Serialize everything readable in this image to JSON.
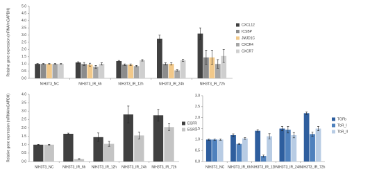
{
  "chart_data": [
    {
      "type": "bar",
      "y_label": "Relative gene expression (mRNA/mGAPDH)",
      "categories": [
        "NIH3T3_NC",
        "NIH3T3_IR_6h",
        "NIH3T3_IR_12h",
        "NIH3T3_IR_24h",
        "NIH3T3_IR_72h"
      ],
      "series": [
        {
          "name": "CXCL12",
          "color": "#404040",
          "values": [
            1.0,
            1.1,
            1.2,
            2.75,
            3.1
          ],
          "errors": [
            0.03,
            0.05,
            0.04,
            0.25,
            0.4
          ]
        },
        {
          "name": "ICSBP",
          "color": "#8c8c8c",
          "values": [
            1.0,
            1.0,
            0.95,
            1.0,
            1.45
          ],
          "errors": [
            0.03,
            0.1,
            0.05,
            0.08,
            0.5
          ]
        },
        {
          "name": "JMJD1C",
          "color": "#f2c98a",
          "values": [
            1.0,
            0.95,
            0.95,
            1.0,
            1.45
          ],
          "errors": [
            0.03,
            0.1,
            0.05,
            0.08,
            0.5
          ]
        },
        {
          "name": "CXCR4",
          "color": "#a6a6a6",
          "values": [
            1.0,
            0.8,
            0.85,
            0.55,
            1.0
          ],
          "errors": [
            0.03,
            0.1,
            0.05,
            0.05,
            0.3
          ]
        },
        {
          "name": "CXCR7",
          "color": "#cfcfcf",
          "values": [
            1.0,
            1.0,
            1.25,
            1.25,
            1.55
          ],
          "errors": [
            0.03,
            0.08,
            0.05,
            0.08,
            0.45
          ]
        }
      ],
      "ylim": [
        0,
        5
      ],
      "yticks": [
        {
          "value": 0,
          "label": "0.0"
        },
        {
          "value": 0.5,
          "label": "0.5"
        },
        {
          "value": 1,
          "label": "1.0"
        },
        {
          "value": 1.5,
          "label": "1.5"
        },
        {
          "value": 2,
          "label": "2.0"
        },
        {
          "value": 2.5,
          "label": "2.5"
        },
        {
          "value": 3,
          "label": "3.0"
        },
        {
          "value": 3.5,
          "label": "3.5"
        },
        {
          "value": 4,
          "label": "4.0"
        },
        {
          "value": 4.5,
          "label": "4.5"
        },
        {
          "value": 5,
          "label": "5.0"
        }
      ],
      "grid": false,
      "legend": "right"
    },
    {
      "type": "bar",
      "y_label": "Relative gene expression (mRNA/mGAPDH)",
      "categories": [
        "NIH3T3_NC",
        "NIH3T3_IR_6h",
        "NIH3T3_IR_12h",
        "NIH3T3_IR_24h",
        "NIH3T3_IR_72h"
      ],
      "series": [
        {
          "name": "EGFR",
          "color": "#404040",
          "values": [
            1.0,
            1.65,
            1.45,
            2.8,
            2.75
          ],
          "errors": [
            0.02,
            0.04,
            0.25,
            0.5,
            0.35
          ]
        },
        {
          "name": "EGR1",
          "color": "#c4c4c4",
          "values": [
            1.0,
            0.15,
            1.05,
            1.55,
            2.05
          ],
          "errors": [
            0.02,
            0.02,
            0.15,
            0.2,
            0.2
          ]
        }
      ],
      "ylim": [
        0,
        4
      ],
      "yticks": [
        {
          "value": 0,
          "label": "0.0"
        },
        {
          "value": 0.5,
          "label": "0.5"
        },
        {
          "value": 1,
          "label": "1.0"
        },
        {
          "value": 1.5,
          "label": "1.5"
        },
        {
          "value": 2,
          "label": "2.0"
        },
        {
          "value": 2.5,
          "label": "2.5"
        },
        {
          "value": 3,
          "label": "3.0"
        },
        {
          "value": 3.5,
          "label": "3.5"
        },
        {
          "value": 4,
          "label": "4.0"
        }
      ],
      "grid": false,
      "legend": "right"
    },
    {
      "type": "bar",
      "categories": [
        "NIH3T3_NC",
        "NIH3T3_IR_6h",
        "NIH3T3_IR_12h",
        "NIH3T3_IR_24h",
        "NIH3T3_IR_72h"
      ],
      "series": [
        {
          "name": "TGFb",
          "color": "#2e5e9e",
          "values": [
            1.0,
            1.2,
            1.4,
            1.5,
            2.2
          ],
          "errors": [
            0.03,
            0.06,
            0.05,
            0.1,
            0.06
          ]
        },
        {
          "name": "TbR_I",
          "color": "#4f81bd",
          "values": [
            1.0,
            0.8,
            0.25,
            1.45,
            1.25
          ],
          "errors": [
            0.03,
            0.03,
            0.05,
            0.15,
            0.1
          ]
        },
        {
          "name": "TbR_II",
          "color": "#b8cce4",
          "values": [
            1.0,
            1.05,
            1.15,
            1.2,
            1.5
          ],
          "errors": [
            0.03,
            0.04,
            0.12,
            0.12,
            0.1
          ]
        }
      ],
      "ylim": [
        0,
        3
      ],
      "yticks": [
        {
          "value": 0,
          "label": "0.0"
        },
        {
          "value": 0.5,
          "label": "0.5"
        },
        {
          "value": 1,
          "label": "1.0"
        },
        {
          "value": 1.5,
          "label": "1.5"
        },
        {
          "value": 2,
          "label": "2.0"
        },
        {
          "value": 2.5,
          "label": "2.5"
        },
        {
          "value": 3,
          "label": "3.0"
        }
      ],
      "grid": false,
      "legend": "right"
    }
  ]
}
